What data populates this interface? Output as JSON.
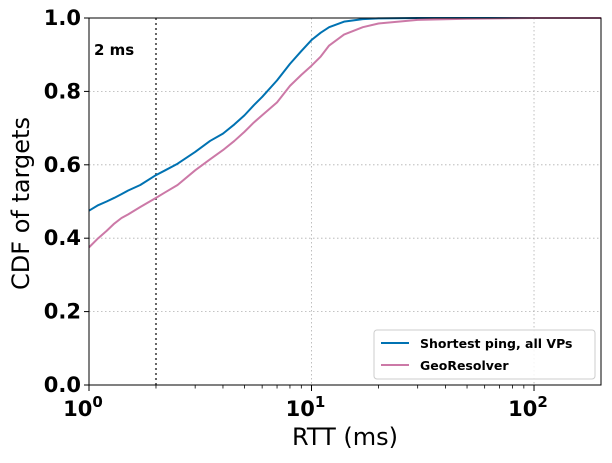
{
  "chart_data": {
    "type": "line",
    "xlabel": "RTT (ms)",
    "ylabel": "CDF of targets",
    "xscale": "log",
    "xlim": [
      1,
      200
    ],
    "ylim": [
      0,
      1
    ],
    "grid": true,
    "legend_position": "lower-right",
    "x_ticks": [
      {
        "value": 1,
        "base": "10",
        "exp": "0"
      },
      {
        "value": 10,
        "base": "10",
        "exp": "1"
      },
      {
        "value": 100,
        "base": "10",
        "exp": "2"
      }
    ],
    "y_ticks": [
      {
        "value": 0.0,
        "label": "0.0"
      },
      {
        "value": 0.2,
        "label": "0.2"
      },
      {
        "value": 0.4,
        "label": "0.4"
      },
      {
        "value": 0.6,
        "label": "0.6"
      },
      {
        "value": 0.8,
        "label": "0.8"
      },
      {
        "value": 1.0,
        "label": "1.0"
      }
    ],
    "annotations": [
      {
        "type": "vline",
        "x": 2,
        "label": "2 ms"
      }
    ],
    "series": [
      {
        "name": "Shortest ping, all VPs",
        "color": "#0072b2",
        "points": [
          [
            1.0,
            0.475
          ],
          [
            1.1,
            0.49
          ],
          [
            1.2,
            0.5
          ],
          [
            1.3,
            0.51
          ],
          [
            1.4,
            0.52
          ],
          [
            1.5,
            0.53
          ],
          [
            1.7,
            0.545
          ],
          [
            2.0,
            0.572
          ],
          [
            2.2,
            0.585
          ],
          [
            2.5,
            0.603
          ],
          [
            3.0,
            0.635
          ],
          [
            3.5,
            0.665
          ],
          [
            4.0,
            0.685
          ],
          [
            4.5,
            0.71
          ],
          [
            5.0,
            0.735
          ],
          [
            5.5,
            0.762
          ],
          [
            6.0,
            0.785
          ],
          [
            7.0,
            0.83
          ],
          [
            8.0,
            0.875
          ],
          [
            9.0,
            0.91
          ],
          [
            10.0,
            0.94
          ],
          [
            11.0,
            0.96
          ],
          [
            12.0,
            0.975
          ],
          [
            14.0,
            0.99
          ],
          [
            17.0,
            0.997
          ],
          [
            20.0,
            0.999
          ],
          [
            30.0,
            1.0
          ],
          [
            100.0,
            1.0
          ],
          [
            200.0,
            1.0
          ]
        ]
      },
      {
        "name": "GeoResolver",
        "color": "#cc79a7",
        "points": [
          [
            1.0,
            0.375
          ],
          [
            1.1,
            0.4
          ],
          [
            1.2,
            0.42
          ],
          [
            1.3,
            0.44
          ],
          [
            1.4,
            0.455
          ],
          [
            1.5,
            0.465
          ],
          [
            1.7,
            0.485
          ],
          [
            2.0,
            0.51
          ],
          [
            2.2,
            0.525
          ],
          [
            2.5,
            0.545
          ],
          [
            3.0,
            0.585
          ],
          [
            3.5,
            0.615
          ],
          [
            4.0,
            0.64
          ],
          [
            4.5,
            0.665
          ],
          [
            5.0,
            0.69
          ],
          [
            5.5,
            0.715
          ],
          [
            6.0,
            0.735
          ],
          [
            7.0,
            0.77
          ],
          [
            8.0,
            0.815
          ],
          [
            9.0,
            0.845
          ],
          [
            10.0,
            0.87
          ],
          [
            11.0,
            0.895
          ],
          [
            12.0,
            0.925
          ],
          [
            14.0,
            0.955
          ],
          [
            17.0,
            0.975
          ],
          [
            20.0,
            0.985
          ],
          [
            30.0,
            0.995
          ],
          [
            50.0,
            0.998
          ],
          [
            100.0,
            1.0
          ],
          [
            200.0,
            1.0
          ]
        ]
      }
    ]
  }
}
